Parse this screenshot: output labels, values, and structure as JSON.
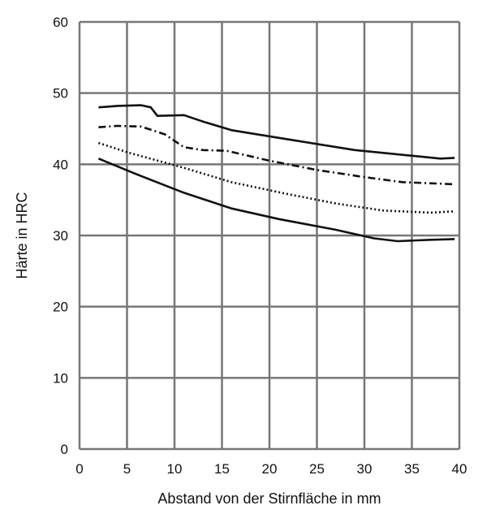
{
  "chart_data": {
    "type": "line",
    "title": "",
    "xlabel": "Abstand von der Stirnfläche in mm",
    "ylabel": "Härte in HRC",
    "xlim": [
      0,
      40
    ],
    "ylim": [
      0,
      60
    ],
    "xticks": [
      0,
      5,
      10,
      15,
      20,
      25,
      30,
      35,
      40
    ],
    "yticks": [
      0,
      10,
      20,
      30,
      40,
      50,
      60
    ],
    "grid": true,
    "series": [
      {
        "style": "solid",
        "x": [
          2,
          4,
          6.5,
          7.5,
          8.2,
          11,
          13,
          16,
          22,
          29,
          35,
          38,
          39.5
        ],
        "y": [
          48,
          48.2,
          48.3,
          48,
          46.8,
          46.9,
          46,
          44.8,
          43.5,
          42,
          41.2,
          40.8,
          40.9
        ]
      },
      {
        "style": "dashdot",
        "x": [
          2,
          4,
          6.5,
          9,
          11,
          13,
          15.5,
          20,
          25,
          30,
          34,
          39.5
        ],
        "y": [
          45.2,
          45.4,
          45.3,
          44.2,
          42.4,
          42,
          41.9,
          40.5,
          39.2,
          38.2,
          37.5,
          37.2
        ]
      },
      {
        "style": "dotted",
        "x": [
          2,
          5,
          11,
          16,
          22,
          27,
          32,
          37,
          39.5
        ],
        "y": [
          43,
          41.7,
          39.5,
          37.5,
          35.8,
          34.5,
          33.5,
          33.2,
          33.4
        ]
      },
      {
        "style": "solid",
        "x": [
          2,
          6,
          11,
          16,
          21,
          27,
          31,
          33.5,
          37,
          39.5
        ],
        "y": [
          40.8,
          38.6,
          36,
          33.8,
          32.3,
          30.8,
          29.6,
          29.2,
          29.4,
          29.5
        ]
      }
    ]
  }
}
